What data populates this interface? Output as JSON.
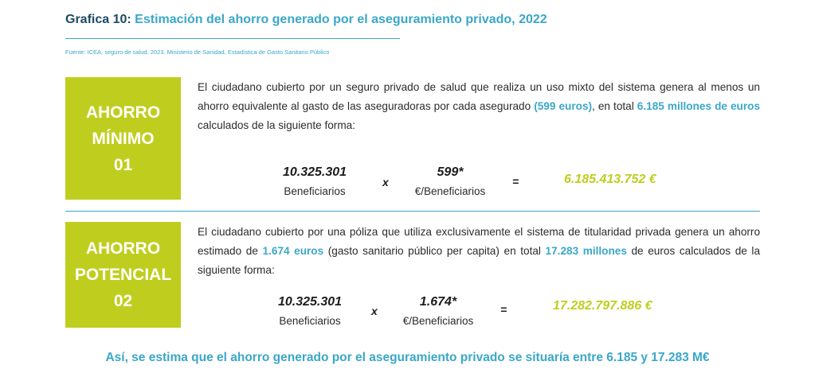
{
  "header": {
    "label": "Grafica 10:",
    "title": "Estimación del ahorro generado por el aseguramiento privado, 2022",
    "source": "Fuente: ICEA, seguro de salud, 2023. Ministerio de Sanidad, Estadística de Gasto Sanitario Público"
  },
  "blocks": [
    {
      "box_line1": "AHORRO",
      "box_line2": "MÍNIMO",
      "box_line3": "01",
      "text_a": "El ciudadano cubierto por un seguro privado de salud que realiza un uso mixto del sistema genera al menos un ahorro equivalente al gasto de las aseguradoras por cada asegurado ",
      "hl_a": "(599 euros)",
      "text_b": ", en total ",
      "hl_b": "6.185 millones de euros",
      "text_c": " calculados de la siguiente forma:",
      "factor1_value": "10.325.301",
      "factor1_label": "Beneficiarios",
      "times": "x",
      "factor2_value": "599*",
      "factor2_label": "€/Beneficiarios",
      "equals": "=",
      "result": "6.185.413.752 €"
    },
    {
      "box_line1": "AHORRO",
      "box_line2": "POTENCIAL",
      "box_line3": "02",
      "text_a": "El ciudadano cubierto por una póliza que utiliza exclusivamente el sistema de titularidad privada genera un ahorro estimado de ",
      "hl_a": "1.674 euros",
      "text_b": " (gasto sanitario público per capita) en total ",
      "hl_b": "17.283 millones",
      "text_c": " de euros calculados de la siguiente forma:",
      "factor1_value": "10.325.301",
      "factor1_label": "Beneficiarios",
      "times": "x",
      "factor2_value": "1.674*",
      "factor2_label": "€/Beneficiarios",
      "equals": "=",
      "result": "17.282.797.886  €"
    }
  ],
  "conclusion": "Así, se estima que el ahorro generado por el aseguramiento privado se situaría entre 6.185 y 17.283 M€",
  "colors": {
    "lime": "#bfce1e",
    "accent_blue": "#3aa7c9",
    "navy": "#1e4a63"
  }
}
